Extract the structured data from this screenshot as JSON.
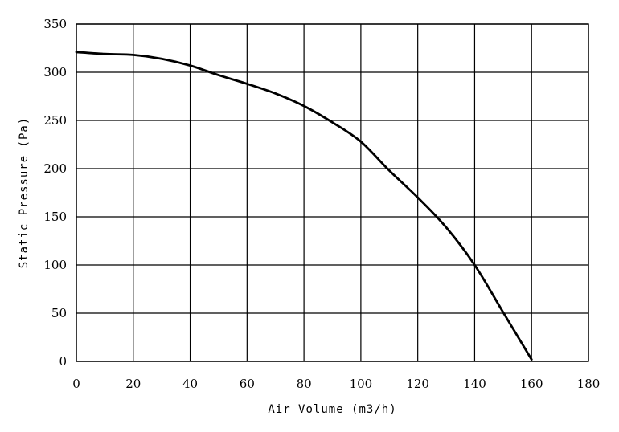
{
  "chart_data": {
    "type": "line",
    "title": "",
    "xlabel": "Air Volume (m3/h)",
    "ylabel": "Static Pressure (Pa)",
    "xlim": [
      0,
      180
    ],
    "ylim": [
      0,
      350
    ],
    "xticks": [
      0,
      20,
      40,
      60,
      80,
      100,
      120,
      140,
      160,
      180
    ],
    "yticks": [
      0,
      50,
      100,
      150,
      200,
      250,
      300,
      350
    ],
    "grid": true,
    "legend": "none",
    "line_color": "#000000",
    "series": [
      {
        "x": [
          0,
          10,
          20,
          30,
          40,
          50,
          60,
          70,
          80,
          90,
          100,
          110,
          120,
          130,
          140,
          150,
          160
        ],
        "y": [
          321,
          319,
          318,
          314,
          307,
          297,
          288,
          278,
          265,
          248,
          228,
          198,
          170,
          139,
          100,
          51,
          2
        ]
      }
    ]
  }
}
